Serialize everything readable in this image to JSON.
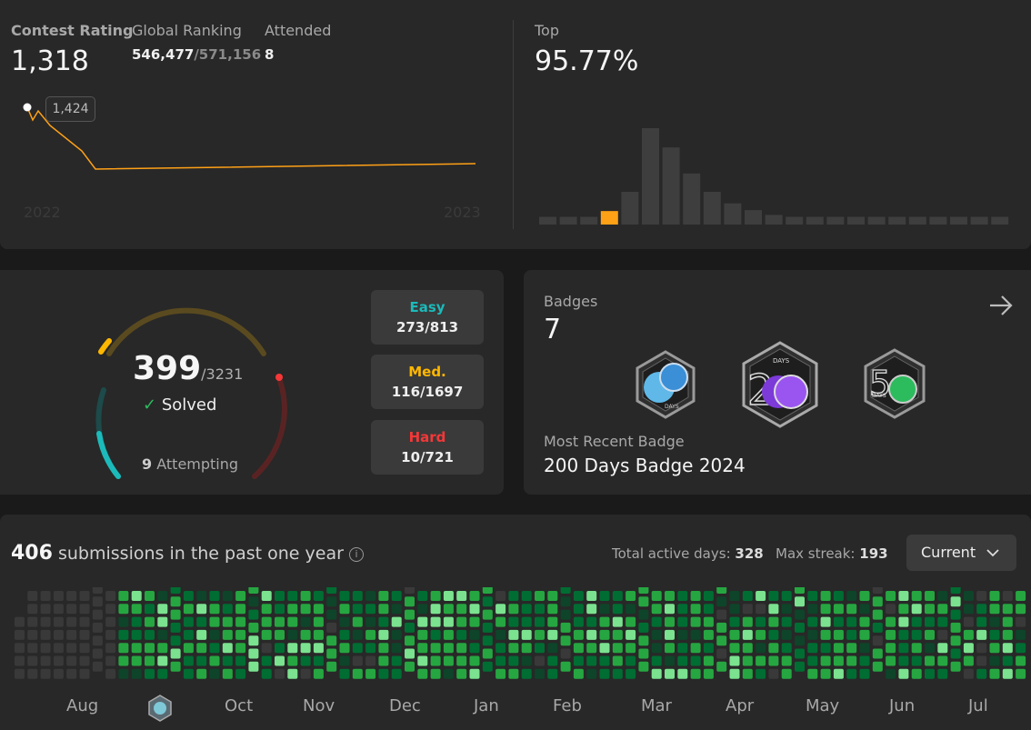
{
  "contest": {
    "rating_label": "Contest Rating",
    "rating_value": "1,318",
    "ranking_label": "Global Ranking",
    "ranking_value": "546,477",
    "ranking_total": "/571,156",
    "attended_label": "Attended",
    "attended_value": "8",
    "tooltip_value": "1,424",
    "year_start": "2022",
    "year_end": "2023",
    "top_label": "Top",
    "top_value": "95.77%",
    "accent_color": "#ffa116",
    "histogram_levels": [
      0.08,
      0.08,
      0.08,
      0.14,
      0.34,
      1.0,
      0.8,
      0.53,
      0.34,
      0.22,
      0.15,
      0.1,
      0.08,
      0.08,
      0.08,
      0.08,
      0.08,
      0.08,
      0.08,
      0.08,
      0.08,
      0.08,
      0.08
    ],
    "histogram_highlight_index": 3
  },
  "solved": {
    "count": "399",
    "total": "/3231",
    "solved_label": "Solved",
    "attempting_count": "9",
    "attempting_label": "Attempting",
    "easy_label": "Easy",
    "easy_value": "273/813",
    "easy_color": "#1cbaba",
    "medium_label": "Med.",
    "medium_value": "116/1697",
    "medium_color": "#ffb700",
    "hard_label": "Hard",
    "hard_value": "10/721",
    "hard_color": "#f63737"
  },
  "badges": {
    "title": "Badges",
    "count": "7",
    "recent_label": "Most Recent Badge",
    "recent_name": "200 Days Badge 2024",
    "badge1_text": "DAYS",
    "badge2_text": "DAYS",
    "badge3_text": "DAYS",
    "badge2_icon": "200-days-badge-icon",
    "badge3_icon": "50-days-badge-icon"
  },
  "heatmap": {
    "submissions_count": "406",
    "submissions_label": "submissions in the past one year",
    "active_days_label": "Total active days:",
    "active_days_value": "328",
    "max_streak_label": "Max streak:",
    "max_streak_value": "193",
    "period_select": "Current",
    "months": [
      "Aug",
      "Oct",
      "Nov",
      "Dec",
      "Jan",
      "Feb",
      "Mar",
      "Apr",
      "May",
      "Jun",
      "Jul"
    ],
    "colors": {
      "empty": "#393939",
      "low": "#0e4429",
      "mid": "#006d32",
      "high": "#26a641",
      "top": "#7be28f"
    }
  }
}
